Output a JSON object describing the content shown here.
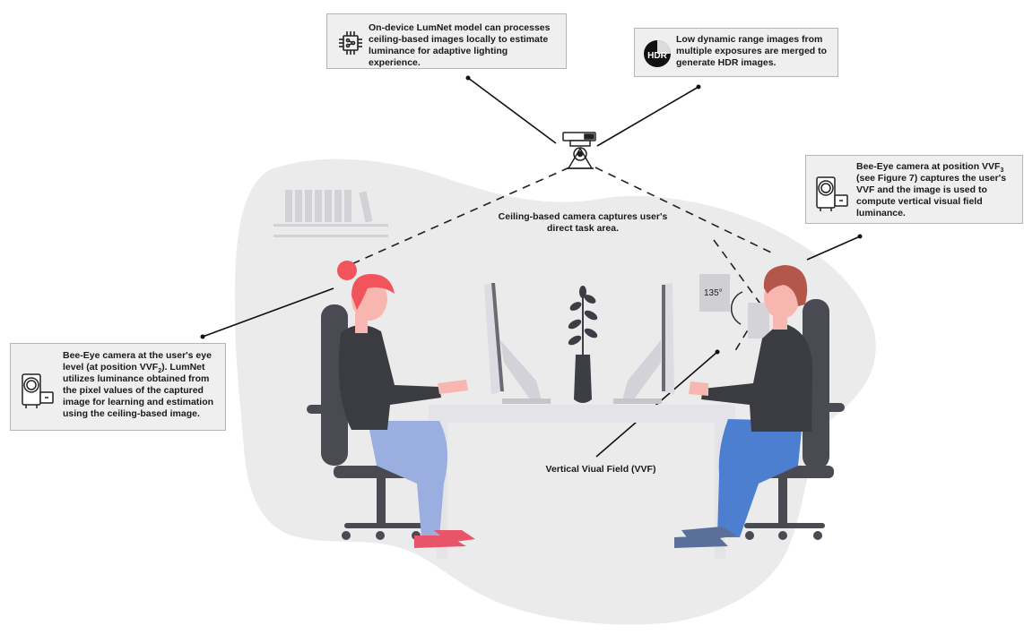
{
  "callouts": {
    "lumnet": {
      "text": "On-device LumNet model can processes ceiling-based images locally to estimate luminance for adaptive lighting experience.",
      "icon": "chip-icon"
    },
    "hdr": {
      "text": "Low dynamic range images from multiple exposures are merged to generate HDR images.",
      "icon": "hdr-icon",
      "icon_label": "HDR"
    },
    "bee_eye_vvf3": {
      "text_before": "Bee-Eye camera at position VVF",
      "subscript": "3",
      "text_after": " (see Figure 7) captures the user's VVF and the image is used to compute vertical visual field luminance.",
      "icon": "camcorder-icon"
    },
    "bee_eye_vvf2": {
      "text_before": "Bee-Eye camera at the user's eye level (at position VVF",
      "subscript": "2",
      "text_after": "). LumNet utilizes luminance obtained from the pixel values of the captured image for learning and estimation using the ceiling-based image.",
      "icon": "camcorder-icon"
    }
  },
  "labels": {
    "ceiling_camera": "Ceiling-based camera captures user's direct  task area.",
    "vvf": "Vertical Viual Field (VVF)",
    "angle": "135°"
  },
  "colors": {
    "blob": "#ebebeb",
    "chair": "#4a4a52",
    "desk": "#e3e3e8",
    "woman_hair": "#f2545b",
    "man_hair": "#b5564a",
    "skin": "#f8b6b0",
    "shirt": "#3b3b42",
    "woman_pants": "#9aaee0",
    "man_pants": "#4c7fd0",
    "woman_shoes": "#e8556b",
    "man_shoes": "#5a6f9a"
  }
}
